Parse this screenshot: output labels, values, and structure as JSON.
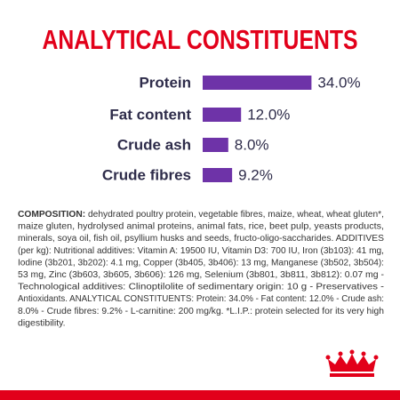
{
  "chart_data": {
    "type": "bar",
    "orientation": "horizontal",
    "title": "ANALYTICAL CONSTITUENTS",
    "categories": [
      "Protein",
      "Fat content",
      "Crude ash",
      "Crude fibres"
    ],
    "values": [
      34.0,
      12.0,
      8.0,
      9.2
    ],
    "value_labels": [
      "34.0%",
      "12.0%",
      "8.0%",
      "9.2%"
    ],
    "color": "#6e33a8"
  },
  "composition": {
    "heading": "COMPOSITION:",
    "lines": [
      " dehydrated poultry protein, vegetable fibres, maize, wheat, wheat gluten*,",
      "maize gluten, hydrolysed animal proteins, animal fats, rice, beet pulp, yeasts products,",
      "minerals, soya oil, fish oil, psyllium husks and seeds, fructo-oligo-saccharides. ADDITIVES",
      "(per kg): Nutritional additives: Vitamin A: 19500 IU, Vitamin D3: 700 IU, Iron (3b103): 41 mg,",
      "Iodine (3b201, 3b202): 4.1 mg, Copper (3b405, 3b406): 13 mg, Manganese (3b502, 3b504):",
      "53 mg, Zinc (3b603, 3b605, 3b606): 126 mg, Selenium (3b801, 3b811, 3b812): 0.07 mg -",
      "Technological additives: Clinoptilolite of sedimentary origin: 10 g - Preservatives -",
      "Antioxidants. ANALYTICAL CONSTITUENTS: Protein: 34.0% - Fat content: 12.0% - Crude ash:",
      "8.0% - Crude fibres: 9.2% - L-carnitine: 200 mg/kg. *L.I.P.: protein selected for its very high",
      "digestibility."
    ]
  }
}
